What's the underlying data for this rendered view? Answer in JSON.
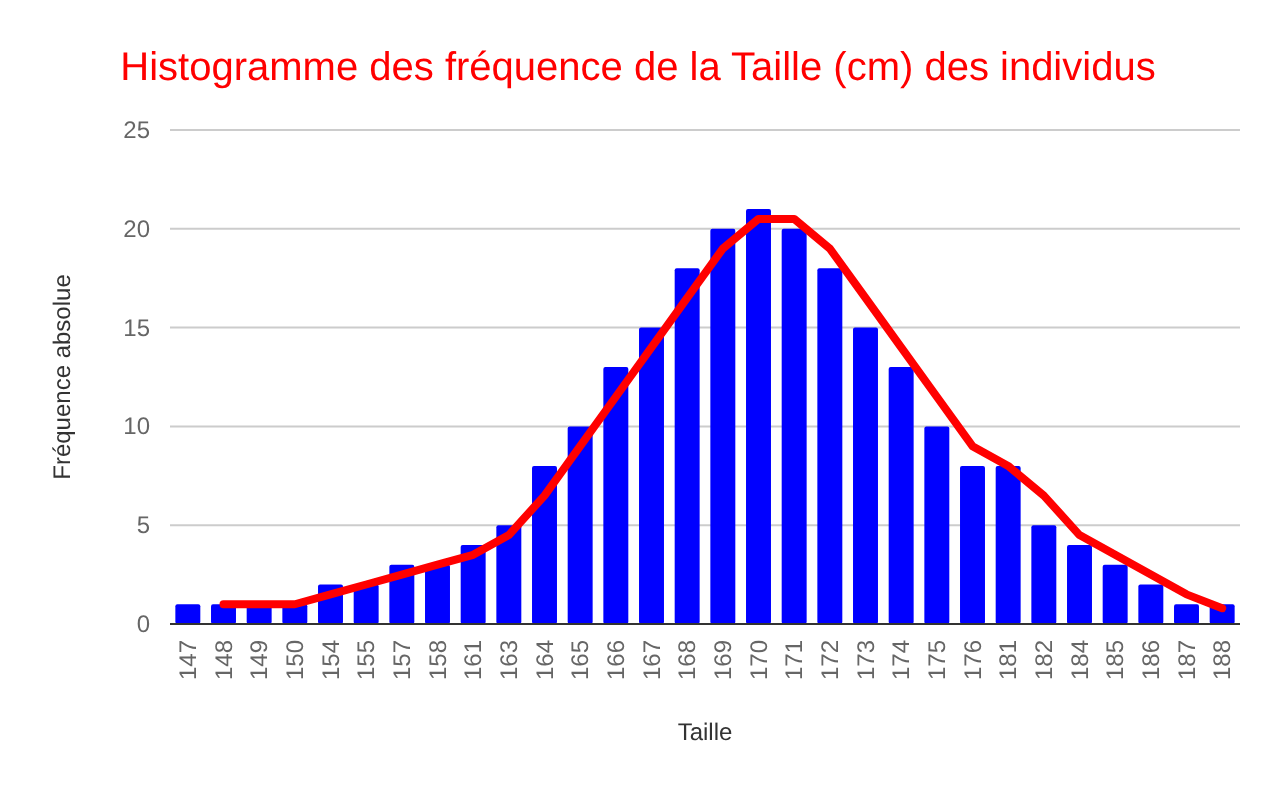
{
  "chart_data": {
    "type": "bar",
    "title": "Histogramme des fréquence de la Taille (cm) des individus",
    "xlabel": "Taille",
    "ylabel": "Fréquence absolue",
    "categories": [
      "147",
      "148",
      "149",
      "150",
      "154",
      "155",
      "157",
      "158",
      "161",
      "163",
      "164",
      "165",
      "166",
      "167",
      "168",
      "169",
      "170",
      "171",
      "172",
      "173",
      "174",
      "175",
      "176",
      "181",
      "182",
      "184",
      "185",
      "186",
      "187",
      "188"
    ],
    "series": [
      {
        "color": "#0000ff",
        "values": [
          1,
          1,
          1,
          1,
          2,
          2,
          3,
          3,
          4,
          5,
          8,
          10,
          13,
          15,
          18,
          20,
          21,
          20,
          18,
          15,
          13,
          10,
          8,
          8,
          5,
          4,
          3,
          2,
          1,
          1
        ]
      },
      {
        "type": "line",
        "color": "#ff0000",
        "values": [
          null,
          1,
          1,
          1,
          1.5,
          2,
          2.5,
          3,
          3.5,
          4.5,
          6.5,
          9,
          11.5,
          14,
          16.5,
          19,
          20.5,
          20.5,
          19,
          16.5,
          14,
          11.5,
          9,
          8,
          6.5,
          4.5,
          3.5,
          2.5,
          1.5,
          0.8
        ]
      }
    ],
    "ylim": [
      0,
      25
    ],
    "yticks": [
      0,
      5,
      10,
      15,
      20,
      25
    ],
    "grid": "y"
  }
}
